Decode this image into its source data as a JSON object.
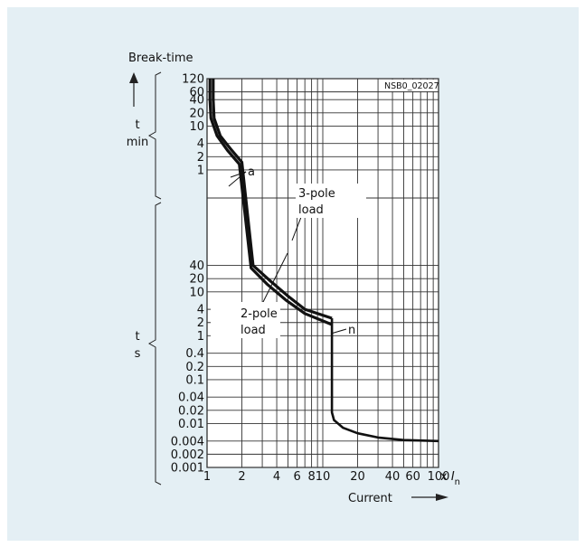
{
  "chart_data": {
    "type": "line",
    "title": "",
    "code": "NSB0_02027",
    "xlabel": "Current",
    "xunit_prefix": "x ",
    "xunit_var": "I",
    "xunit_sub": "n",
    "ylabel": "Break-time",
    "x_scale": "log",
    "xlim": [
      1,
      100
    ],
    "x_ticks": [
      1,
      2,
      4,
      6,
      8,
      10,
      20,
      40,
      60,
      100
    ],
    "x_tick_labels": [
      "1",
      "2",
      "4",
      "6",
      "8",
      "10",
      "20",
      "40",
      "60",
      "100"
    ],
    "y_min_section": {
      "unit_num": "t",
      "unit_den": "min",
      "ticks": [
        1,
        2,
        4,
        10,
        20,
        40,
        60,
        120
      ],
      "tick_labels": [
        "1",
        "2",
        "4",
        "10",
        "20",
        "40",
        "60",
        "120"
      ]
    },
    "y_s_section": {
      "unit_num": "t",
      "unit_den": "s",
      "ticks": [
        0.001,
        0.002,
        0.004,
        0.01,
        0.02,
        0.04,
        0.1,
        0.2,
        0.4,
        1,
        2,
        4,
        10,
        20,
        40
      ],
      "tick_labels": [
        "0.001",
        "0.002",
        "0.004",
        "0.01",
        "0.02",
        "0.04",
        "0.1",
        "0.2",
        "0.4",
        "1",
        "2",
        "4",
        "10",
        "20",
        "40"
      ]
    },
    "grid": true,
    "annotations": {
      "a": "a",
      "n": "n",
      "three_pole_1": "3-pole",
      "three_pole_2": "load",
      "two_pole_1": "2-pole",
      "two_pole_2": "load"
    },
    "series": [
      {
        "name": "3-pole load",
        "points": [
          {
            "x": 1.13,
            "t": 120,
            "u": "min"
          },
          {
            "x": 1.13,
            "t": 40,
            "u": "min"
          },
          {
            "x": 1.15,
            "t": 15,
            "u": "min"
          },
          {
            "x": 1.3,
            "t": 6,
            "u": "min"
          },
          {
            "x": 1.6,
            "t": 3,
            "u": "min"
          },
          {
            "x": 2,
            "t": 1.5,
            "u": "min"
          },
          {
            "x": 2.5,
            "t": 40,
            "u": "s"
          },
          {
            "x": 3.5,
            "t": 18,
            "u": "s"
          },
          {
            "x": 5,
            "t": 8,
            "u": "s"
          },
          {
            "x": 7,
            "t": 4,
            "u": "s"
          },
          {
            "x": 12,
            "t": 2.5,
            "u": "s"
          }
        ]
      },
      {
        "name": "2-pole load",
        "points": [
          {
            "x": 1.06,
            "t": 120,
            "u": "min"
          },
          {
            "x": 1.06,
            "t": 40,
            "u": "min"
          },
          {
            "x": 1.08,
            "t": 15,
            "u": "min"
          },
          {
            "x": 1.22,
            "t": 6,
            "u": "min"
          },
          {
            "x": 1.5,
            "t": 2.8,
            "u": "min"
          },
          {
            "x": 1.9,
            "t": 1.35,
            "u": "min"
          },
          {
            "x": 2.4,
            "t": 35,
            "u": "s"
          },
          {
            "x": 3.3,
            "t": 15,
            "u": "s"
          },
          {
            "x": 4.8,
            "t": 6.5,
            "u": "s"
          },
          {
            "x": 7,
            "t": 3.2,
            "u": "s"
          },
          {
            "x": 12,
            "t": 1.8,
            "u": "s"
          }
        ]
      },
      {
        "name": "n",
        "points": [
          {
            "x": 12,
            "t": 2.5,
            "u": "s"
          },
          {
            "x": 12,
            "t": 0.018,
            "u": "s"
          },
          {
            "x": 12.5,
            "t": 0.012,
            "u": "s"
          },
          {
            "x": 15,
            "t": 0.008,
            "u": "s"
          },
          {
            "x": 20,
            "t": 0.006,
            "u": "s"
          },
          {
            "x": 30,
            "t": 0.0048,
            "u": "s"
          },
          {
            "x": 50,
            "t": 0.0042,
            "u": "s"
          },
          {
            "x": 100,
            "t": 0.004,
            "u": "s"
          }
        ]
      }
    ]
  }
}
